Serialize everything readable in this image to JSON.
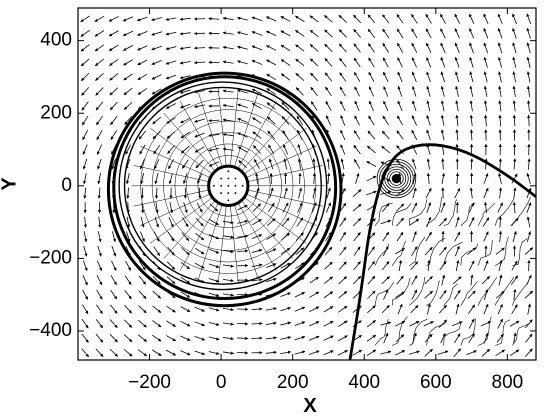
{
  "chart_data": {
    "type": "vector-field",
    "title": "",
    "xlabel": "X",
    "ylabel": "Y",
    "xlim": [
      -400,
      880
    ],
    "ylim": [
      -480,
      490
    ],
    "xticks": [
      -200,
      0,
      200,
      400,
      600,
      800
    ],
    "yticks": [
      400,
      200,
      0,
      -200,
      -400
    ],
    "xtick_labels": [
      "−200",
      "0",
      "200",
      "400",
      "600",
      "800"
    ],
    "ytick_labels": [
      "400",
      "200",
      "0",
      "−200",
      "−400"
    ],
    "grid": false,
    "legend": "none",
    "line_color": "#000000",
    "background_color": "#ffffff",
    "core_circle": {
      "center": [
        20,
        0
      ],
      "radius": 55
    },
    "contour_rings": [
      {
        "center": [
          10,
          -5
        ],
        "radius": 310,
        "weight": "bold"
      },
      {
        "center": [
          10,
          -10
        ],
        "radius": 325,
        "weight": "bold"
      },
      {
        "center": [
          5,
          0
        ],
        "radius": 290,
        "weight": "normal"
      },
      {
        "center": [
          5,
          0
        ],
        "radius": 275,
        "weight": "normal"
      }
    ],
    "small_vortex": {
      "center": [
        490,
        20
      ],
      "radius_outer": 55,
      "radius_inner": 12
    },
    "front_arc": {
      "points": [
        [
          360,
          -480
        ],
        [
          390,
          -300
        ],
        [
          420,
          -80
        ],
        [
          470,
          80
        ],
        [
          560,
          120
        ],
        [
          680,
          100
        ],
        [
          800,
          30
        ],
        [
          880,
          -30
        ]
      ]
    }
  }
}
